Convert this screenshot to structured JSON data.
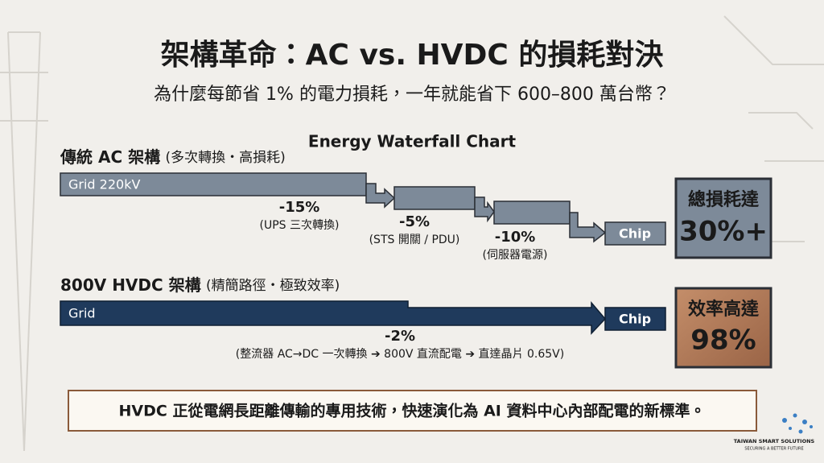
{
  "title": "架構革命：AC vs. HVDC 的損耗對決",
  "subtitle": "為什麼每節省 1% 的電力損耗，一年就能省下 600–800 萬台幣？",
  "chart_label": "Energy Waterfall Chart",
  "ac": {
    "heading": "傳統 AC 架構",
    "heading_note": "(多次轉換・高損耗)",
    "start": "Grid 220kV",
    "steps": [
      {
        "loss": "-15%",
        "note": "(UPS 三次轉換)"
      },
      {
        "loss": "-5%",
        "note": "(STS 開關 / PDU)"
      },
      {
        "loss": "-10%",
        "note": "(伺服器電源)"
      }
    ],
    "end": "Chip",
    "summary": [
      "總損耗達",
      "30%+"
    ]
  },
  "hvdc": {
    "heading": "800V HVDC 架構",
    "heading_note": "(精簡路徑・極致效率)",
    "start": "Grid",
    "steps": [
      {
        "loss": "-2%",
        "note": "(整流器 AC→DC 一次轉換 ➔ 800V 直流配電 ➔ 直達晶片 0.65V)"
      }
    ],
    "end": "Chip",
    "summary": [
      "效率高達",
      "98%"
    ]
  },
  "footer": "HVDC 正從電網長距離傳輸的專用技術，快速演化為 AI 資料中心內部配電的新標準。",
  "logo": {
    "name": "TAIWAN SMART SOLUTIONS",
    "tagline": "SECURING A BETTER FUTURE"
  }
}
